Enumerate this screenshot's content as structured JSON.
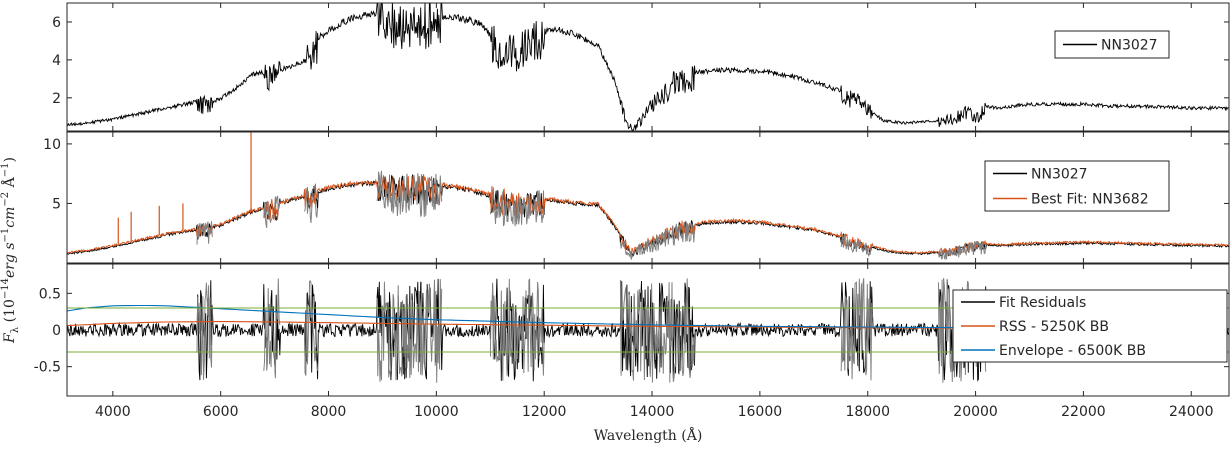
{
  "figure": {
    "xlabel": "Wavelength (Å)",
    "ylabel": "F_λ (10^-14 erg s^-1 cm^-2 Å^-1)"
  },
  "chart_data": [
    {
      "type": "line",
      "panel": "top",
      "xlim": [
        3150,
        24700
      ],
      "ylim": [
        0.25,
        7.0
      ],
      "yticks": [
        2,
        4,
        6
      ],
      "grid": false,
      "legend_position": "top-right",
      "series": [
        {
          "name": "NN3027",
          "color": "#000000",
          "x": [
            3150,
            3500,
            4000,
            4500,
            5000,
            5500,
            5800,
            6000,
            6300,
            6600,
            6900,
            7200,
            7500,
            7700,
            8000,
            8300,
            8700,
            9000,
            9300,
            9600,
            10000,
            10400,
            10800,
            11200,
            11500,
            11900,
            12200,
            12600,
            13000,
            13300,
            13550,
            13700,
            14000,
            14400,
            14800,
            15200,
            15700,
            16200,
            16700,
            17200,
            17700,
            18000,
            18300,
            18700,
            19200,
            19600,
            19900,
            20000,
            20200,
            20400,
            20700,
            21000,
            21500,
            22000,
            22500,
            23000,
            23500,
            24000,
            24700
          ],
          "values": [
            0.6,
            0.7,
            0.9,
            1.2,
            1.5,
            1.8,
            1.8,
            2.0,
            2.6,
            3.3,
            3.4,
            3.6,
            3.9,
            5.0,
            5.6,
            6.1,
            6.5,
            6.6,
            6.3,
            6.2,
            6.4,
            6.3,
            6.0,
            4.8,
            4.7,
            5.5,
            5.7,
            5.4,
            4.8,
            3.0,
            0.6,
            0.6,
            1.8,
            3.0,
            3.4,
            3.5,
            3.5,
            3.4,
            3.1,
            2.7,
            2.2,
            1.5,
            0.8,
            0.7,
            0.8,
            1.0,
            1.5,
            1.0,
            1.6,
            1.5,
            1.6,
            1.7,
            1.7,
            1.7,
            1.6,
            1.6,
            1.55,
            1.5,
            1.5
          ]
        }
      ]
    },
    {
      "type": "line",
      "panel": "middle",
      "xlim": [
        3150,
        24700
      ],
      "ylim": [
        0.0,
        11.0
      ],
      "yticks": [
        5,
        10
      ],
      "ytick_labels": [
        "5",
        "10"
      ],
      "grid": false,
      "legend_position": "top-right",
      "series": [
        {
          "name": "NN3027",
          "color": "#000000",
          "x": [
            3150,
            3500,
            4000,
            4500,
            5000,
            5500,
            6000,
            6500,
            7000,
            7500,
            8000,
            8500,
            9000,
            9500,
            10000,
            10500,
            11000,
            11500,
            12000,
            12500,
            13000,
            13300,
            13600,
            14000,
            14500,
            15000,
            15500,
            16000,
            17000,
            17500,
            18000,
            18500,
            19000,
            19500,
            20000,
            20500,
            21000,
            22000,
            23000,
            24000,
            24700
          ],
          "values": [
            0.8,
            1.0,
            1.4,
            1.9,
            2.4,
            2.8,
            3.2,
            4.2,
            4.9,
            5.6,
            6.3,
            6.7,
            6.8,
            6.7,
            6.6,
            6.3,
            5.7,
            5.2,
            5.4,
            5.1,
            4.9,
            3.2,
            0.9,
            1.9,
            3.0,
            3.4,
            3.5,
            3.4,
            2.8,
            2.2,
            1.4,
            0.9,
            0.8,
            1.0,
            1.6,
            1.5,
            1.6,
            1.7,
            1.6,
            1.5,
            1.45
          ]
        },
        {
          "name": "Best Fit: NN3682",
          "color": "#d95319",
          "x": [
            3150,
            3500,
            4000,
            4500,
            5000,
            5500,
            6000,
            6500,
            7000,
            7500,
            8000,
            8500,
            9000,
            9500,
            10000,
            10500,
            11000,
            11500,
            12000,
            12500,
            13000,
            13300,
            13600,
            14000,
            14500,
            15000,
            15500,
            16000,
            17000,
            17500,
            18000,
            18500,
            19000,
            19500,
            20000,
            20500,
            21000,
            22000,
            23000,
            24000,
            24700
          ],
          "values": [
            0.9,
            1.1,
            1.5,
            2.0,
            2.5,
            2.9,
            3.3,
            4.3,
            5.0,
            5.7,
            6.4,
            6.8,
            6.9,
            6.8,
            6.7,
            6.4,
            5.8,
            5.3,
            5.5,
            5.2,
            5.0,
            3.3,
            1.0,
            2.0,
            3.1,
            3.5,
            3.6,
            3.5,
            2.9,
            2.3,
            1.5,
            1.0,
            0.9,
            1.1,
            1.7,
            1.6,
            1.7,
            1.8,
            1.7,
            1.6,
            1.55
          ]
        }
      ],
      "annotations": [
        {
          "kind": "emission-spike",
          "x": 6563,
          "value": 11.0
        },
        {
          "kind": "emission-spike",
          "x": 4861,
          "value": 4.8
        },
        {
          "kind": "emission-spike",
          "x": 5300,
          "value": 5.0
        },
        {
          "kind": "emission-spike",
          "x": 4340,
          "value": 4.3
        },
        {
          "kind": "emission-spike",
          "x": 4101,
          "value": 3.8
        }
      ]
    },
    {
      "type": "line",
      "panel": "bottom",
      "xlim": [
        3150,
        24700
      ],
      "ylim": [
        -0.9,
        0.9
      ],
      "yticks": [
        -0.5,
        0,
        0.5
      ],
      "ytick_labels": [
        "-0.5",
        "0",
        "0.5"
      ],
      "xticks": [
        4000,
        6000,
        8000,
        10000,
        12000,
        14000,
        16000,
        18000,
        20000,
        22000,
        24000
      ],
      "xtick_labels": [
        "4000",
        "6000",
        "8000",
        "10000",
        "12000",
        "14000",
        "16000",
        "18000",
        "20000",
        "22000",
        "24000"
      ],
      "grid": false,
      "legend_position": "bottom-right",
      "series": [
        {
          "name": "Fit Residuals",
          "color": "#000000",
          "x": [
            3150,
            24700
          ],
          "values": [
            0,
            0
          ]
        },
        {
          "name": "RSS - 5250K BB",
          "color": "#d95319",
          "x": [
            3150,
            4000,
            5000,
            6000,
            7000,
            8000,
            9000,
            10000,
            12000,
            14000,
            16000,
            18000,
            20000,
            22000,
            24700
          ],
          "values": [
            0.06,
            0.09,
            0.11,
            0.115,
            0.11,
            0.1,
            0.09,
            0.08,
            0.065,
            0.05,
            0.04,
            0.03,
            0.025,
            0.02,
            0.015
          ]
        },
        {
          "name": "Envelope - 6500K BB",
          "color": "#0072bd",
          "x": [
            3150,
            3500,
            4000,
            4500,
            5000,
            5500,
            6000,
            7000,
            8000,
            9000,
            10000,
            12000,
            14000,
            16000,
            18000,
            20000,
            22000,
            24700
          ],
          "values": [
            0.26,
            0.3,
            0.33,
            0.335,
            0.33,
            0.31,
            0.29,
            0.25,
            0.21,
            0.17,
            0.14,
            0.1,
            0.07,
            0.05,
            0.04,
            0.03,
            0.025,
            0.02
          ]
        },
        {
          "name": "",
          "color": "#77ac30",
          "x": [
            3150,
            24700
          ],
          "values": [
            0.3,
            0.3
          ]
        },
        {
          "name": "",
          "color": "#77ac30",
          "x": [
            3150,
            24700
          ],
          "values": [
            -0.3,
            -0.3
          ]
        }
      ],
      "masked_regions": [
        [
          5550,
          5850
        ],
        [
          6800,
          7100
        ],
        [
          7250,
          7500
        ],
        [
          7550,
          7800
        ],
        [
          8900,
          10100
        ],
        [
          11000,
          12000
        ],
        [
          13400,
          14800
        ],
        [
          17500,
          18100
        ],
        [
          19300,
          20200
        ]
      ]
    }
  ]
}
